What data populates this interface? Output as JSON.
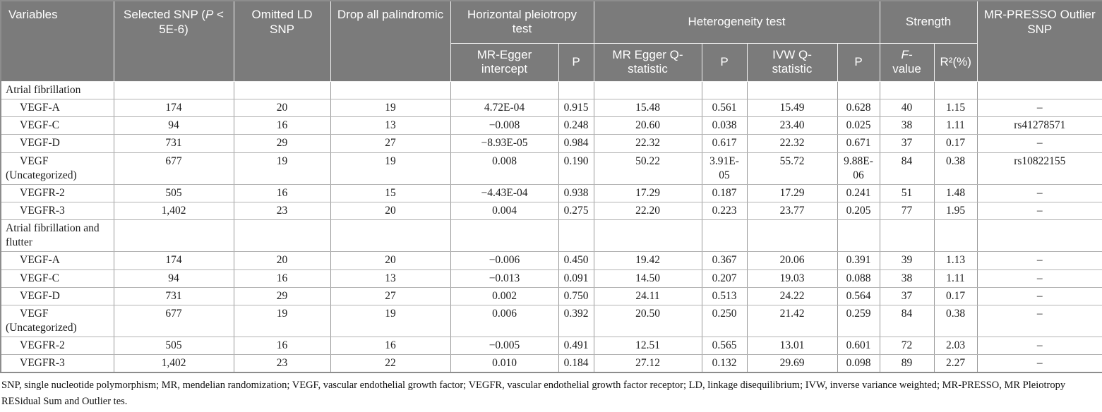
{
  "table": {
    "header": {
      "variables": "Variables",
      "selected_snp_prefix": "Selected SNP (",
      "selected_snp_p": "P",
      "selected_snp_suffix": " < 5E-6)",
      "omitted_ld": "Omitted LD SNP",
      "drop_palindromic": "Drop all palindromic",
      "horizontal_pleiotropy": "Horizontal pleiotropy test",
      "heterogeneity": "Heterogeneity test",
      "strength": "Strength",
      "mr_presso": "MR-PRESSO Outlier SNP",
      "sub": {
        "mr_egger_intercept": "MR-Egger intercept",
        "p1": "P",
        "mr_egger_q": "MR Egger Q-statistic",
        "p2": "P",
        "ivw_q": "IVW Q-statistic",
        "p3": "P",
        "f_line1": "F-",
        "f_line2": "value",
        "r2": "R²(%)"
      }
    },
    "rows": [
      {
        "type": "group",
        "label": "Atrial fibrillation"
      },
      {
        "type": "data",
        "label": "VEGF-A",
        "cells": [
          "174",
          "20",
          "19",
          "4.72E-04",
          "0.915",
          "15.48",
          "0.561",
          "15.49",
          "0.628",
          "40",
          "1.15",
          "–"
        ]
      },
      {
        "type": "data",
        "label": "VEGF-C",
        "cells": [
          "94",
          "16",
          "13",
          "−0.008",
          "0.248",
          "20.60",
          "0.038",
          "23.40",
          "0.025",
          "38",
          "1.11",
          "rs41278571"
        ]
      },
      {
        "type": "data",
        "label": "VEGF-D",
        "cells": [
          "731",
          "29",
          "27",
          "−8.93E-05",
          "0.984",
          "22.32",
          "0.617",
          "22.32",
          "0.671",
          "37",
          "0.17",
          "–"
        ]
      },
      {
        "type": "data",
        "label": "VEGF (Uncategorized)",
        "cells": [
          "677",
          "19",
          "19",
          "0.008",
          "0.190",
          "50.22",
          "3.91E-05",
          "55.72",
          "9.88E-06",
          "84",
          "0.38",
          "rs10822155"
        ]
      },
      {
        "type": "data",
        "label": "VEGFR-2",
        "cells": [
          "505",
          "16",
          "15",
          "−4.43E-04",
          "0.938",
          "17.29",
          "0.187",
          "17.29",
          "0.241",
          "51",
          "1.48",
          "–"
        ]
      },
      {
        "type": "data",
        "label": "VEGFR-3",
        "cells": [
          "1,402",
          "23",
          "20",
          "0.004",
          "0.275",
          "22.20",
          "0.223",
          "23.77",
          "0.205",
          "77",
          "1.95",
          "–"
        ]
      },
      {
        "type": "group",
        "label": "Atrial fibrillation and flutter"
      },
      {
        "type": "data",
        "label": "VEGF-A",
        "cells": [
          "174",
          "20",
          "20",
          "−0.006",
          "0.450",
          "19.42",
          "0.367",
          "20.06",
          "0.391",
          "39",
          "1.13",
          "–"
        ]
      },
      {
        "type": "data",
        "label": "VEGF-C",
        "cells": [
          "94",
          "16",
          "13",
          "−0.013",
          "0.091",
          "14.50",
          "0.207",
          "19.03",
          "0.088",
          "38",
          "1.11",
          "–"
        ]
      },
      {
        "type": "data",
        "label": "VEGF-D",
        "cells": [
          "731",
          "29",
          "27",
          "0.002",
          "0.750",
          "24.11",
          "0.513",
          "24.22",
          "0.564",
          "37",
          "0.17",
          "–"
        ]
      },
      {
        "type": "data",
        "label": "VEGF (Uncategorized)",
        "cells": [
          "677",
          "19",
          "19",
          "0.006",
          "0.392",
          "20.50",
          "0.250",
          "21.42",
          "0.259",
          "84",
          "0.38",
          "–"
        ]
      },
      {
        "type": "data",
        "label": "VEGFR-2",
        "cells": [
          "505",
          "16",
          "16",
          "−0.005",
          "0.491",
          "12.51",
          "0.565",
          "13.01",
          "0.601",
          "72",
          "2.03",
          "–"
        ]
      },
      {
        "type": "data",
        "label": "VEGFR-3",
        "cells": [
          "1,402",
          "23",
          "22",
          "0.010",
          "0.184",
          "27.12",
          "0.132",
          "29.69",
          "0.098",
          "89",
          "2.27",
          "–"
        ]
      }
    ]
  },
  "footnote": "SNP, single nucleotide polymorphism; MR, mendelian randomization; VEGF, vascular endothelial growth factor; VEGFR, vascular endothelial growth factor receptor; LD, linkage disequilibrium; IVW, inverse variance weighted; MR-PRESSO, MR Pleiotropy RESidual Sum and Outlier tes."
}
